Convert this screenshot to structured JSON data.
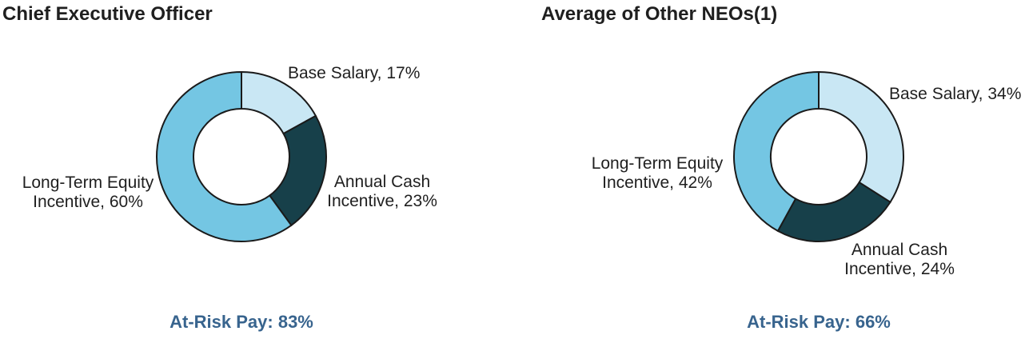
{
  "style": {
    "background": "#FFFFFF",
    "text_color": "#1F1F1F",
    "outline_color": "#1A1A1A",
    "at_risk_color": "#38648E"
  },
  "chart_data": [
    {
      "type": "pie",
      "subtype": "donut",
      "title": "Chief Executive Officer",
      "direction": "clockwise",
      "start_angle_deg": 0,
      "inner_radius_ratio": 0.57,
      "legend": "none",
      "segments": [
        {
          "label": "Base Salary",
          "value": 17,
          "display": "Base Salary, 17%",
          "color": "#C9E7F4"
        },
        {
          "label": "Annual Cash Incentive",
          "value": 23,
          "display": "Annual Cash\nIncentive, 23%",
          "color": "#17404A"
        },
        {
          "label": "Long-Term Equity Incentive",
          "value": 60,
          "display": "Long-Term Equity\nIncentive, 60%",
          "color": "#74C6E3"
        }
      ],
      "annotation": "At-Risk Pay: 83%"
    },
    {
      "type": "pie",
      "subtype": "donut",
      "title": "Average of Other NEOs(1)",
      "direction": "clockwise",
      "start_angle_deg": 0,
      "inner_radius_ratio": 0.57,
      "legend": "none",
      "segments": [
        {
          "label": "Base Salary",
          "value": 34,
          "display": "Base Salary, 34%",
          "color": "#C9E7F4"
        },
        {
          "label": "Annual Cash Incentive",
          "value": 24,
          "display": "Annual Cash\nIncentive, 24%",
          "color": "#17404A"
        },
        {
          "label": "Long-Term Equity Incentive",
          "value": 42,
          "display": "Long-Term Equity\nIncentive, 42%",
          "color": "#74C6E3"
        }
      ],
      "annotation": "At-Risk Pay: 66%"
    }
  ]
}
